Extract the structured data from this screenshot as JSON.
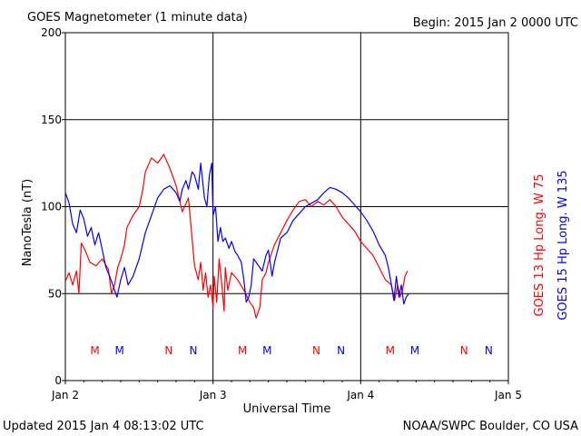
{
  "title": "GOES Magnetometer (1 minute data)",
  "begin_label": "Begin:  2015 Jan 2 0000 UTC",
  "footer_left": "Updated 2015 Jan  4 08:13:02 UTC",
  "footer_right": "NOAA/SWPC Boulder, CO USA",
  "colors": {
    "goes13": "#ff0000",
    "goes15": "#0000ff",
    "grid": "#000000"
  },
  "chart_data": {
    "type": "line",
    "title": "GOES Magnetometer (1 minute data)",
    "xlabel": "Universal Time",
    "ylabel": "NanoTesla (nT)",
    "xlim": [
      0,
      72
    ],
    "ylim": [
      0,
      200
    ],
    "x_unit": "hours since 2015 Jan 2 0000 UTC",
    "grid": true,
    "legend_position": "right, vertical",
    "x_ticks": [
      {
        "x": 0,
        "label": "Jan 2"
      },
      {
        "x": 24,
        "label": "Jan 3"
      },
      {
        "x": 48,
        "label": "Jan 4"
      },
      {
        "x": 72,
        "label": "Jan 5"
      }
    ],
    "y_ticks": [
      0,
      50,
      100,
      150,
      200
    ],
    "markers": [
      {
        "x": 4.8,
        "text": "M",
        "series": 0
      },
      {
        "x": 8.8,
        "text": "M",
        "series": 1
      },
      {
        "x": 16.8,
        "text": "N",
        "series": 0
      },
      {
        "x": 20.8,
        "text": "N",
        "series": 1
      },
      {
        "x": 28.8,
        "text": "M",
        "series": 0
      },
      {
        "x": 32.8,
        "text": "M",
        "series": 1
      },
      {
        "x": 40.8,
        "text": "N",
        "series": 0
      },
      {
        "x": 44.8,
        "text": "N",
        "series": 1
      },
      {
        "x": 52.8,
        "text": "M",
        "series": 0
      },
      {
        "x": 56.8,
        "text": "M",
        "series": 1
      },
      {
        "x": 64.8,
        "text": "N",
        "series": 0
      },
      {
        "x": 68.8,
        "text": "N",
        "series": 1
      }
    ],
    "series": [
      {
        "name": "GOES 13 Hp  Long. W 75",
        "color": "#ff0000",
        "x": [
          0,
          0.6,
          1.2,
          1.8,
          2.2,
          2.6,
          3.2,
          4,
          5,
          6,
          7,
          7.5,
          8,
          8.5,
          9,
          9.6,
          10,
          11,
          12,
          12.6,
          13,
          14,
          15,
          16,
          17,
          18,
          19,
          20,
          21,
          21.6,
          22,
          22.4,
          22.8,
          23.2,
          23.6,
          24,
          24.2,
          24.6,
          25,
          25.4,
          25.8,
          26,
          26.4,
          27,
          28,
          29,
          30,
          30.6,
          31,
          31.6,
          32,
          32.6,
          33,
          34,
          35,
          36,
          37,
          38,
          39,
          40,
          41,
          42,
          43,
          44,
          45,
          46,
          47,
          48,
          49,
          50,
          51,
          52,
          53,
          53.5,
          54,
          54.4,
          54.8,
          55.2,
          55.6
        ],
        "y": [
          57,
          62,
          55,
          63,
          50,
          79,
          75,
          68,
          66,
          70,
          64,
          50,
          55,
          65,
          70,
          78,
          88,
          95,
          100,
          110,
          120,
          128,
          125,
          130,
          122,
          112,
          97,
          105,
          66,
          58,
          68,
          52,
          62,
          48,
          55,
          42,
          60,
          45,
          70,
          56,
          40,
          65,
          52,
          62,
          58,
          52,
          45,
          42,
          36,
          42,
          58,
          62,
          68,
          78,
          85,
          92,
          98,
          103,
          104,
          100,
          103,
          101,
          104,
          100,
          94,
          90,
          86,
          80,
          76,
          72,
          65,
          58,
          55,
          46,
          55,
          48,
          52,
          60,
          63
        ]
      },
      {
        "name": "GOES 15 Hp  Long. W 135",
        "color": "#0000ff",
        "x": [
          0,
          0.6,
          1.2,
          1.8,
          2.4,
          3,
          3.6,
          4.2,
          4.8,
          5.4,
          6,
          6.6,
          7.2,
          7.8,
          8.4,
          9,
          9.6,
          10.2,
          11,
          12,
          13,
          14,
          15,
          16,
          17,
          18,
          18.6,
          19,
          19.6,
          20,
          20.6,
          21,
          21.6,
          22,
          22.6,
          23,
          23.4,
          23.8,
          24,
          24.4,
          24.8,
          25.2,
          25.6,
          26,
          26.6,
          27,
          27.6,
          28,
          28.6,
          29,
          29.4,
          29.8,
          30.2,
          30.6,
          31,
          31.6,
          32,
          32.6,
          33,
          33.6,
          34,
          35,
          36,
          37,
          38,
          39,
          40,
          41,
          42,
          43,
          44,
          45,
          46,
          47,
          48,
          49,
          50,
          51,
          52,
          52.5,
          53,
          53.4,
          53.8,
          54.2,
          54.6,
          55,
          55.4,
          55.8
        ],
        "y": [
          108,
          102,
          90,
          85,
          98,
          93,
          83,
          88,
          78,
          85,
          75,
          65,
          60,
          54,
          48,
          58,
          65,
          55,
          60,
          70,
          85,
          95,
          105,
          110,
          112,
          108,
          103,
          110,
          115,
          110,
          120,
          118,
          110,
          125,
          105,
          100,
          118,
          125,
          95,
          100,
          80,
          88,
          80,
          82,
          76,
          80,
          74,
          72,
          68,
          58,
          45,
          48,
          55,
          70,
          68,
          65,
          63,
          72,
          75,
          60,
          68,
          82,
          85,
          92,
          96,
          100,
          102,
          104,
          108,
          111,
          110,
          108,
          105,
          101,
          97,
          92,
          86,
          78,
          72,
          65,
          55,
          46,
          60,
          48,
          55,
          44,
          48,
          50
        ]
      }
    ]
  }
}
